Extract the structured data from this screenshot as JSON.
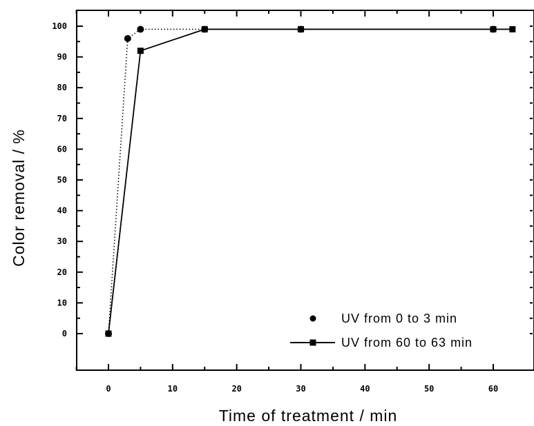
{
  "chart_data": {
    "type": "line",
    "title": "",
    "xlabel": "Time of treatment / min",
    "ylabel": "Color removal / %",
    "xlim": [
      -5,
      65
    ],
    "ylim": [
      -5,
      105
    ],
    "x_ticks": [
      0,
      10,
      20,
      30,
      40,
      50,
      60
    ],
    "y_ticks": [
      0,
      10,
      20,
      30,
      40,
      50,
      60,
      70,
      80,
      90,
      100
    ],
    "grid": false,
    "legend_position": "bottom-right",
    "series": [
      {
        "name": "UV from 0 to 3 min",
        "marker": "circle",
        "line": "dotted",
        "color": "#000000",
        "x": [
          0,
          3,
          5,
          15,
          30,
          60
        ],
        "y": [
          0,
          96,
          99,
          99,
          99,
          99
        ]
      },
      {
        "name": "UV from 60 to 63 min",
        "marker": "square",
        "line": "solid",
        "color": "#000000",
        "x": [
          0,
          5,
          15,
          30,
          60,
          63
        ],
        "y": [
          0,
          92,
          99,
          99,
          99,
          99
        ]
      }
    ]
  }
}
